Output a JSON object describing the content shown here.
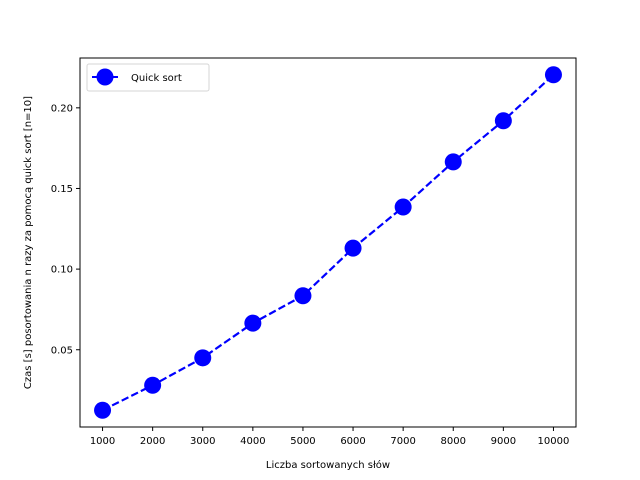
{
  "chart_data": {
    "type": "line",
    "title": "",
    "xlabel": "Liczba sortowanych słów",
    "ylabel": "Czas [s] posortowania n razy za pomocą quick sort [n=10]",
    "x": [
      1000,
      2000,
      3000,
      4000,
      5000,
      6000,
      7000,
      8000,
      9000,
      10000
    ],
    "series": [
      {
        "name": "Quick sort",
        "values": [
          0.0125,
          0.028,
          0.045,
          0.0665,
          0.0835,
          0.113,
          0.1385,
          0.1665,
          0.192,
          0.2205
        ],
        "color": "#0000ff",
        "line_style": "dashed",
        "marker": "circle"
      }
    ],
    "xlim": [
      550,
      10450
    ],
    "ylim": [
      0.0021,
      0.2309
    ],
    "xticks": [
      "1000",
      "2000",
      "3000",
      "4000",
      "5000",
      "6000",
      "7000",
      "8000",
      "9000",
      "10000"
    ],
    "yticks": [
      "0.05",
      "0.10",
      "0.15",
      "0.20"
    ],
    "ytick_values": [
      0.05,
      0.1,
      0.15,
      0.2
    ],
    "grid": false,
    "legend_position": "upper-left"
  }
}
